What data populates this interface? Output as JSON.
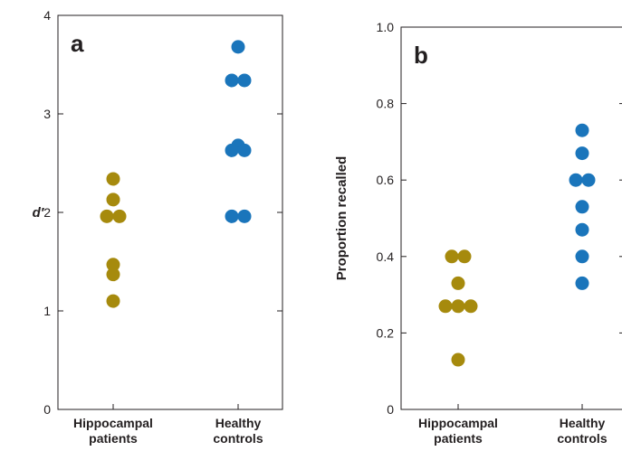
{
  "colors": {
    "hippocampal": "#a68a0d",
    "healthy": "#1a75bb",
    "axis": "#231f20"
  },
  "chart_data": [
    {
      "type": "scatter",
      "panel_label": "a",
      "ylabel": "d′",
      "ylim": [
        0,
        4
      ],
      "yticks": [
        0,
        1,
        2,
        3,
        4
      ],
      "ytick_labels": [
        "0",
        "1",
        "2",
        "3",
        "4"
      ],
      "grid": false,
      "categories": [
        "Hippocampal patients",
        "Healthy controls"
      ],
      "category_lines": [
        [
          "Hippocampal",
          "patients"
        ],
        [
          "Healthy",
          "controls"
        ]
      ],
      "series": [
        {
          "color_key": "hippocampal",
          "points": [
            {
              "x": 0,
              "dx": 0,
              "y": 2.34
            },
            {
              "x": 0,
              "dx": 0,
              "y": 2.13
            },
            {
              "x": 0,
              "dx": -1,
              "y": 1.96
            },
            {
              "x": 0,
              "dx": 1,
              "y": 1.96
            },
            {
              "x": 0,
              "dx": 0,
              "y": 1.47
            },
            {
              "x": 0,
              "dx": 0,
              "y": 1.37
            },
            {
              "x": 0,
              "dx": 0,
              "y": 1.1
            }
          ]
        },
        {
          "color_key": "healthy",
          "points": [
            {
              "x": 1,
              "dx": 0,
              "y": 3.68
            },
            {
              "x": 1,
              "dx": -1,
              "y": 3.34
            },
            {
              "x": 1,
              "dx": 1,
              "y": 3.34
            },
            {
              "x": 1,
              "dx": 0,
              "y": 2.68
            },
            {
              "x": 1,
              "dx": -1,
              "y": 2.63
            },
            {
              "x": 1,
              "dx": 1,
              "y": 2.63
            },
            {
              "x": 1,
              "dx": -1,
              "y": 1.96
            },
            {
              "x": 1,
              "dx": 1,
              "y": 1.96
            }
          ]
        }
      ]
    },
    {
      "type": "scatter",
      "panel_label": "b",
      "ylabel": "Proportion recalled",
      "ylim": [
        0,
        1.0
      ],
      "yticks": [
        0,
        0.2,
        0.4,
        0.6,
        0.8,
        1.0
      ],
      "ytick_labels": [
        "0",
        "0.2",
        "0.4",
        "0.6",
        "0.8",
        "1.0"
      ],
      "grid": false,
      "categories": [
        "Hippocampal patients",
        "Healthy controls"
      ],
      "category_lines": [
        [
          "Hippocampal",
          "patients"
        ],
        [
          "Healthy",
          "controls"
        ]
      ],
      "series": [
        {
          "color_key": "hippocampal",
          "points": [
            {
              "x": 0,
              "dx": -1,
              "y": 0.4
            },
            {
              "x": 0,
              "dx": 1,
              "y": 0.4
            },
            {
              "x": 0,
              "dx": 0,
              "y": 0.33
            },
            {
              "x": 0,
              "dx": -2,
              "y": 0.27
            },
            {
              "x": 0,
              "dx": 0,
              "y": 0.27
            },
            {
              "x": 0,
              "dx": 2,
              "y": 0.27
            },
            {
              "x": 0,
              "dx": 0,
              "y": 0.13
            }
          ]
        },
        {
          "color_key": "healthy",
          "points": [
            {
              "x": 1,
              "dx": 0,
              "y": 0.73
            },
            {
              "x": 1,
              "dx": 0,
              "y": 0.67
            },
            {
              "x": 1,
              "dx": -1,
              "y": 0.6
            },
            {
              "x": 1,
              "dx": 1,
              "y": 0.6
            },
            {
              "x": 1,
              "dx": 0,
              "y": 0.53
            },
            {
              "x": 1,
              "dx": 0,
              "y": 0.47
            },
            {
              "x": 1,
              "dx": 0,
              "y": 0.4
            },
            {
              "x": 1,
              "dx": 0,
              "y": 0.33
            }
          ]
        }
      ]
    }
  ]
}
